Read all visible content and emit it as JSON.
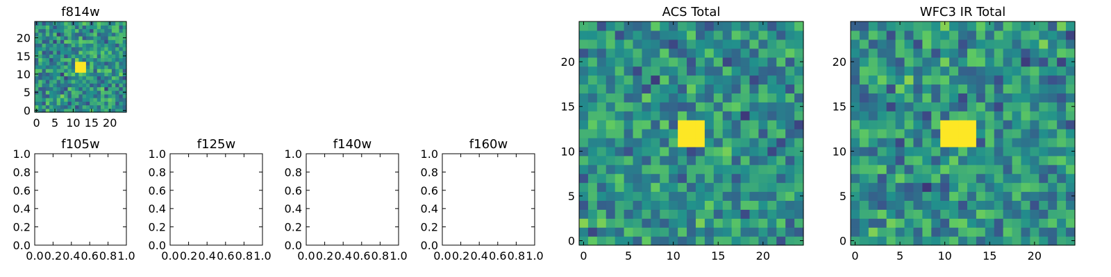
{
  "figure": {
    "background": "#ffffff"
  },
  "colormap": [
    "#440154",
    "#3b528b",
    "#21918c",
    "#5ec962",
    "#fde725"
  ],
  "chart_data": [
    {
      "type": "heatmap",
      "id": "f814w",
      "title": "f814w",
      "grid_size": [
        25,
        25
      ],
      "seed": 814,
      "peak_center": [
        12,
        12
      ],
      "xlim": [
        -0.5,
        24.5
      ],
      "ylim": [
        -0.5,
        24.5
      ],
      "xticks": [
        "0",
        "5",
        "10",
        "15",
        "20"
      ],
      "yticks": [
        "0",
        "5",
        "10",
        "15",
        "20"
      ]
    },
    {
      "type": "empty",
      "id": "f105w",
      "title": "f105w",
      "xlim": [
        0,
        1
      ],
      "ylim": [
        0,
        1
      ],
      "xticks": [
        "0.0",
        "0.2",
        "0.4",
        "0.6",
        "0.8",
        "1.0"
      ],
      "yticks": [
        "0.0",
        "0.2",
        "0.4",
        "0.6",
        "0.8",
        "1.0"
      ]
    },
    {
      "type": "empty",
      "id": "f125w",
      "title": "f125w",
      "xlim": [
        0,
        1
      ],
      "ylim": [
        0,
        1
      ],
      "xticks": [
        "0.0",
        "0.2",
        "0.4",
        "0.6",
        "0.8",
        "1.0"
      ],
      "yticks": [
        "0.0",
        "0.2",
        "0.4",
        "0.6",
        "0.8",
        "1.0"
      ]
    },
    {
      "type": "empty",
      "id": "f140w",
      "title": "f140w",
      "xlim": [
        0,
        1
      ],
      "ylim": [
        0,
        1
      ],
      "xticks": [
        "0.0",
        "0.2",
        "0.4",
        "0.6",
        "0.8",
        "1.0"
      ],
      "yticks": [
        "0.0",
        "0.2",
        "0.4",
        "0.6",
        "0.8",
        "1.0"
      ]
    },
    {
      "type": "empty",
      "id": "f160w",
      "title": "f160w",
      "xlim": [
        0,
        1
      ],
      "ylim": [
        0,
        1
      ],
      "xticks": [
        "0.0",
        "0.2",
        "0.4",
        "0.6",
        "0.8",
        "1.0"
      ],
      "yticks": [
        "0.0",
        "0.2",
        "0.4",
        "0.6",
        "0.8",
        "1.0"
      ]
    },
    {
      "type": "heatmap",
      "id": "acs-total",
      "title": "ACS Total",
      "grid_size": [
        25,
        25
      ],
      "seed": 2024,
      "peak_center": [
        12,
        12
      ],
      "xlim": [
        -0.5,
        24.5
      ],
      "ylim": [
        -0.5,
        24.5
      ],
      "xticks": [
        "0",
        "5",
        "10",
        "15",
        "20"
      ],
      "yticks": [
        "0",
        "5",
        "10",
        "15",
        "20"
      ]
    },
    {
      "type": "heatmap",
      "id": "wfc3-ir-total",
      "title": "WFC3 IR Total",
      "grid_size": [
        25,
        25
      ],
      "seed": 3160,
      "peak_center": [
        11.5,
        12
      ],
      "xlim": [
        -0.5,
        24.5
      ],
      "ylim": [
        -0.5,
        24.5
      ],
      "xticks": [
        "0",
        "5",
        "10",
        "15",
        "20"
      ],
      "yticks": [
        "0",
        "5",
        "10",
        "15",
        "20"
      ]
    }
  ]
}
